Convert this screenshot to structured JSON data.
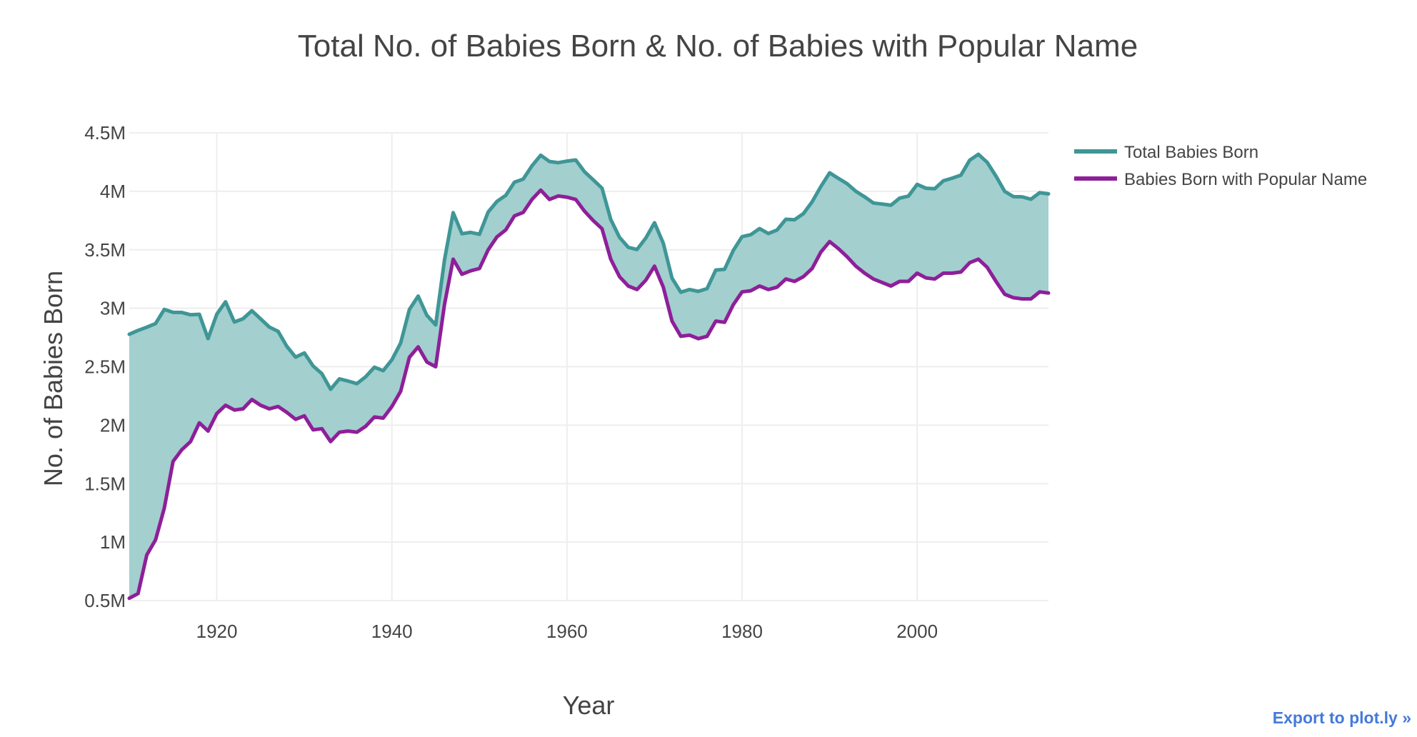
{
  "export_link": "Export to plot.ly »",
  "chart_data": {
    "type": "area",
    "title": "Total No. of Babies Born & No. of Babies with Popular Name",
    "xlabel": "Year",
    "ylabel": "No. of Babies Born",
    "xlim": [
      1910,
      2015
    ],
    "ylim": [
      500000,
      4500000
    ],
    "x_ticks": [
      1920,
      1940,
      1960,
      1980,
      2000
    ],
    "y_ticks": [
      {
        "value": 500000,
        "label": "0.5M"
      },
      {
        "value": 1000000,
        "label": "1M"
      },
      {
        "value": 1500000,
        "label": "1.5M"
      },
      {
        "value": 2000000,
        "label": "2M"
      },
      {
        "value": 2500000,
        "label": "2.5M"
      },
      {
        "value": 3000000,
        "label": "3M"
      },
      {
        "value": 3500000,
        "label": "3.5M"
      },
      {
        "value": 4000000,
        "label": "4M"
      },
      {
        "value": 4500000,
        "label": "4.5M"
      }
    ],
    "legend_position": "top-right",
    "fill_between": true,
    "fill_color": "#a3cfcf",
    "x": [
      1910,
      1911,
      1912,
      1913,
      1914,
      1915,
      1916,
      1917,
      1918,
      1919,
      1920,
      1921,
      1922,
      1923,
      1924,
      1925,
      1926,
      1927,
      1928,
      1929,
      1930,
      1931,
      1932,
      1933,
      1934,
      1935,
      1936,
      1937,
      1938,
      1939,
      1940,
      1941,
      1942,
      1943,
      1944,
      1945,
      1946,
      1947,
      1948,
      1949,
      1950,
      1951,
      1952,
      1953,
      1954,
      1955,
      1956,
      1957,
      1958,
      1959,
      1960,
      1961,
      1962,
      1963,
      1964,
      1965,
      1966,
      1967,
      1968,
      1969,
      1970,
      1971,
      1972,
      1973,
      1974,
      1975,
      1976,
      1977,
      1978,
      1979,
      1980,
      1981,
      1982,
      1983,
      1984,
      1985,
      1986,
      1987,
      1988,
      1989,
      1990,
      1991,
      1992,
      1993,
      1994,
      1995,
      1996,
      1997,
      1998,
      1999,
      2000,
      2001,
      2002,
      2003,
      2004,
      2005,
      2006,
      2007,
      2008,
      2009,
      2010,
      2011,
      2012,
      2013,
      2014,
      2015
    ],
    "series": [
      {
        "name": "Total Babies Born",
        "color": "#3f9696",
        "values": [
          2777000,
          2810000,
          2838000,
          2869000,
          2990000,
          2965000,
          2964000,
          2944000,
          2948000,
          2740000,
          2950000,
          3055000,
          2882000,
          2910000,
          2979000,
          2909000,
          2839000,
          2802000,
          2674000,
          2582000,
          2618000,
          2506000,
          2440000,
          2307000,
          2396000,
          2377000,
          2355000,
          2413000,
          2496000,
          2466000,
          2559000,
          2703000,
          2989000,
          3104000,
          2939000,
          2858000,
          3411000,
          3817000,
          3637000,
          3649000,
          3632000,
          3823000,
          3913000,
          3965000,
          4078000,
          4104000,
          4218000,
          4308000,
          4255000,
          4245000,
          4258000,
          4268000,
          4167000,
          4098000,
          4027000,
          3760000,
          3606000,
          3521000,
          3502000,
          3600000,
          3731000,
          3556000,
          3258000,
          3137000,
          3160000,
          3144000,
          3168000,
          3327000,
          3333000,
          3494000,
          3612000,
          3629000,
          3681000,
          3639000,
          3669000,
          3761000,
          3757000,
          3809000,
          3910000,
          4041000,
          4158000,
          4111000,
          4065000,
          4000000,
          3953000,
          3900000,
          3891000,
          3881000,
          3942000,
          3959000,
          4059000,
          4026000,
          4022000,
          4090000,
          4112000,
          4138000,
          4266000,
          4316000,
          4248000,
          4130000,
          3999000,
          3954000,
          3953000,
          3932000,
          3988000,
          3978000
        ]
      },
      {
        "name": "Babies Born with Popular Name",
        "color": "#8e1f99",
        "values": [
          520000,
          560000,
          890000,
          1020000,
          1290000,
          1690000,
          1790000,
          1860000,
          2020000,
          1950000,
          2100000,
          2170000,
          2130000,
          2140000,
          2220000,
          2170000,
          2140000,
          2160000,
          2110000,
          2050000,
          2080000,
          1960000,
          1970000,
          1860000,
          1940000,
          1950000,
          1940000,
          1990000,
          2070000,
          2060000,
          2160000,
          2290000,
          2580000,
          2670000,
          2540000,
          2500000,
          3030000,
          3420000,
          3290000,
          3320000,
          3340000,
          3500000,
          3610000,
          3670000,
          3790000,
          3820000,
          3930000,
          4010000,
          3930000,
          3960000,
          3950000,
          3930000,
          3830000,
          3750000,
          3680000,
          3420000,
          3270000,
          3190000,
          3160000,
          3240000,
          3360000,
          3180000,
          2890000,
          2760000,
          2770000,
          2740000,
          2760000,
          2890000,
          2880000,
          3030000,
          3140000,
          3150000,
          3190000,
          3160000,
          3180000,
          3250000,
          3230000,
          3270000,
          3340000,
          3480000,
          3570000,
          3510000,
          3440000,
          3360000,
          3300000,
          3250000,
          3220000,
          3190000,
          3230000,
          3230000,
          3300000,
          3260000,
          3250000,
          3300000,
          3300000,
          3310000,
          3390000,
          3420000,
          3350000,
          3230000,
          3120000,
          3090000,
          3080000,
          3080000,
          3140000,
          3130000
        ]
      }
    ]
  }
}
